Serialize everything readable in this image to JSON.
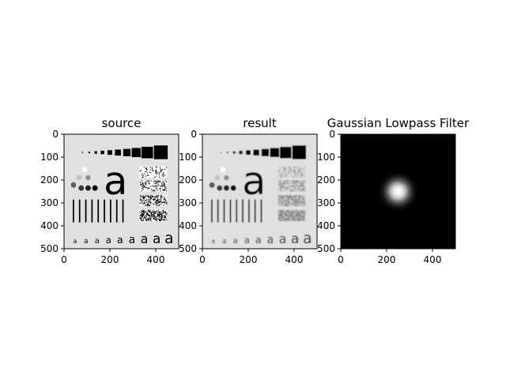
{
  "chart_data": [
    {
      "type": "heatmap",
      "title": "source",
      "image": "test-pattern",
      "colormap": "gray",
      "xlim": [
        0,
        500
      ],
      "ylim": [
        500,
        0
      ],
      "xticks": [
        0,
        200,
        400
      ],
      "yticks": [
        0,
        100,
        200,
        300,
        400,
        500
      ],
      "glyph": "a"
    },
    {
      "type": "heatmap",
      "title": "result",
      "image": "test-pattern-blurred",
      "colormap": "gray",
      "xlim": [
        0,
        500
      ],
      "ylim": [
        500,
        0
      ],
      "xticks": [
        0,
        200,
        400
      ],
      "yticks": [
        0,
        100,
        200,
        300,
        400,
        500
      ],
      "glyph": "a"
    },
    {
      "type": "heatmap",
      "title": "Gaussian Lowpass Filter",
      "image": "gaussian-blob",
      "colormap": "gray",
      "center": [
        250,
        250
      ],
      "xlim": [
        0,
        500
      ],
      "ylim": [
        500,
        0
      ],
      "xticks": [
        0,
        200,
        400
      ],
      "yticks": [
        0,
        100,
        200,
        300,
        400,
        500
      ]
    }
  ]
}
